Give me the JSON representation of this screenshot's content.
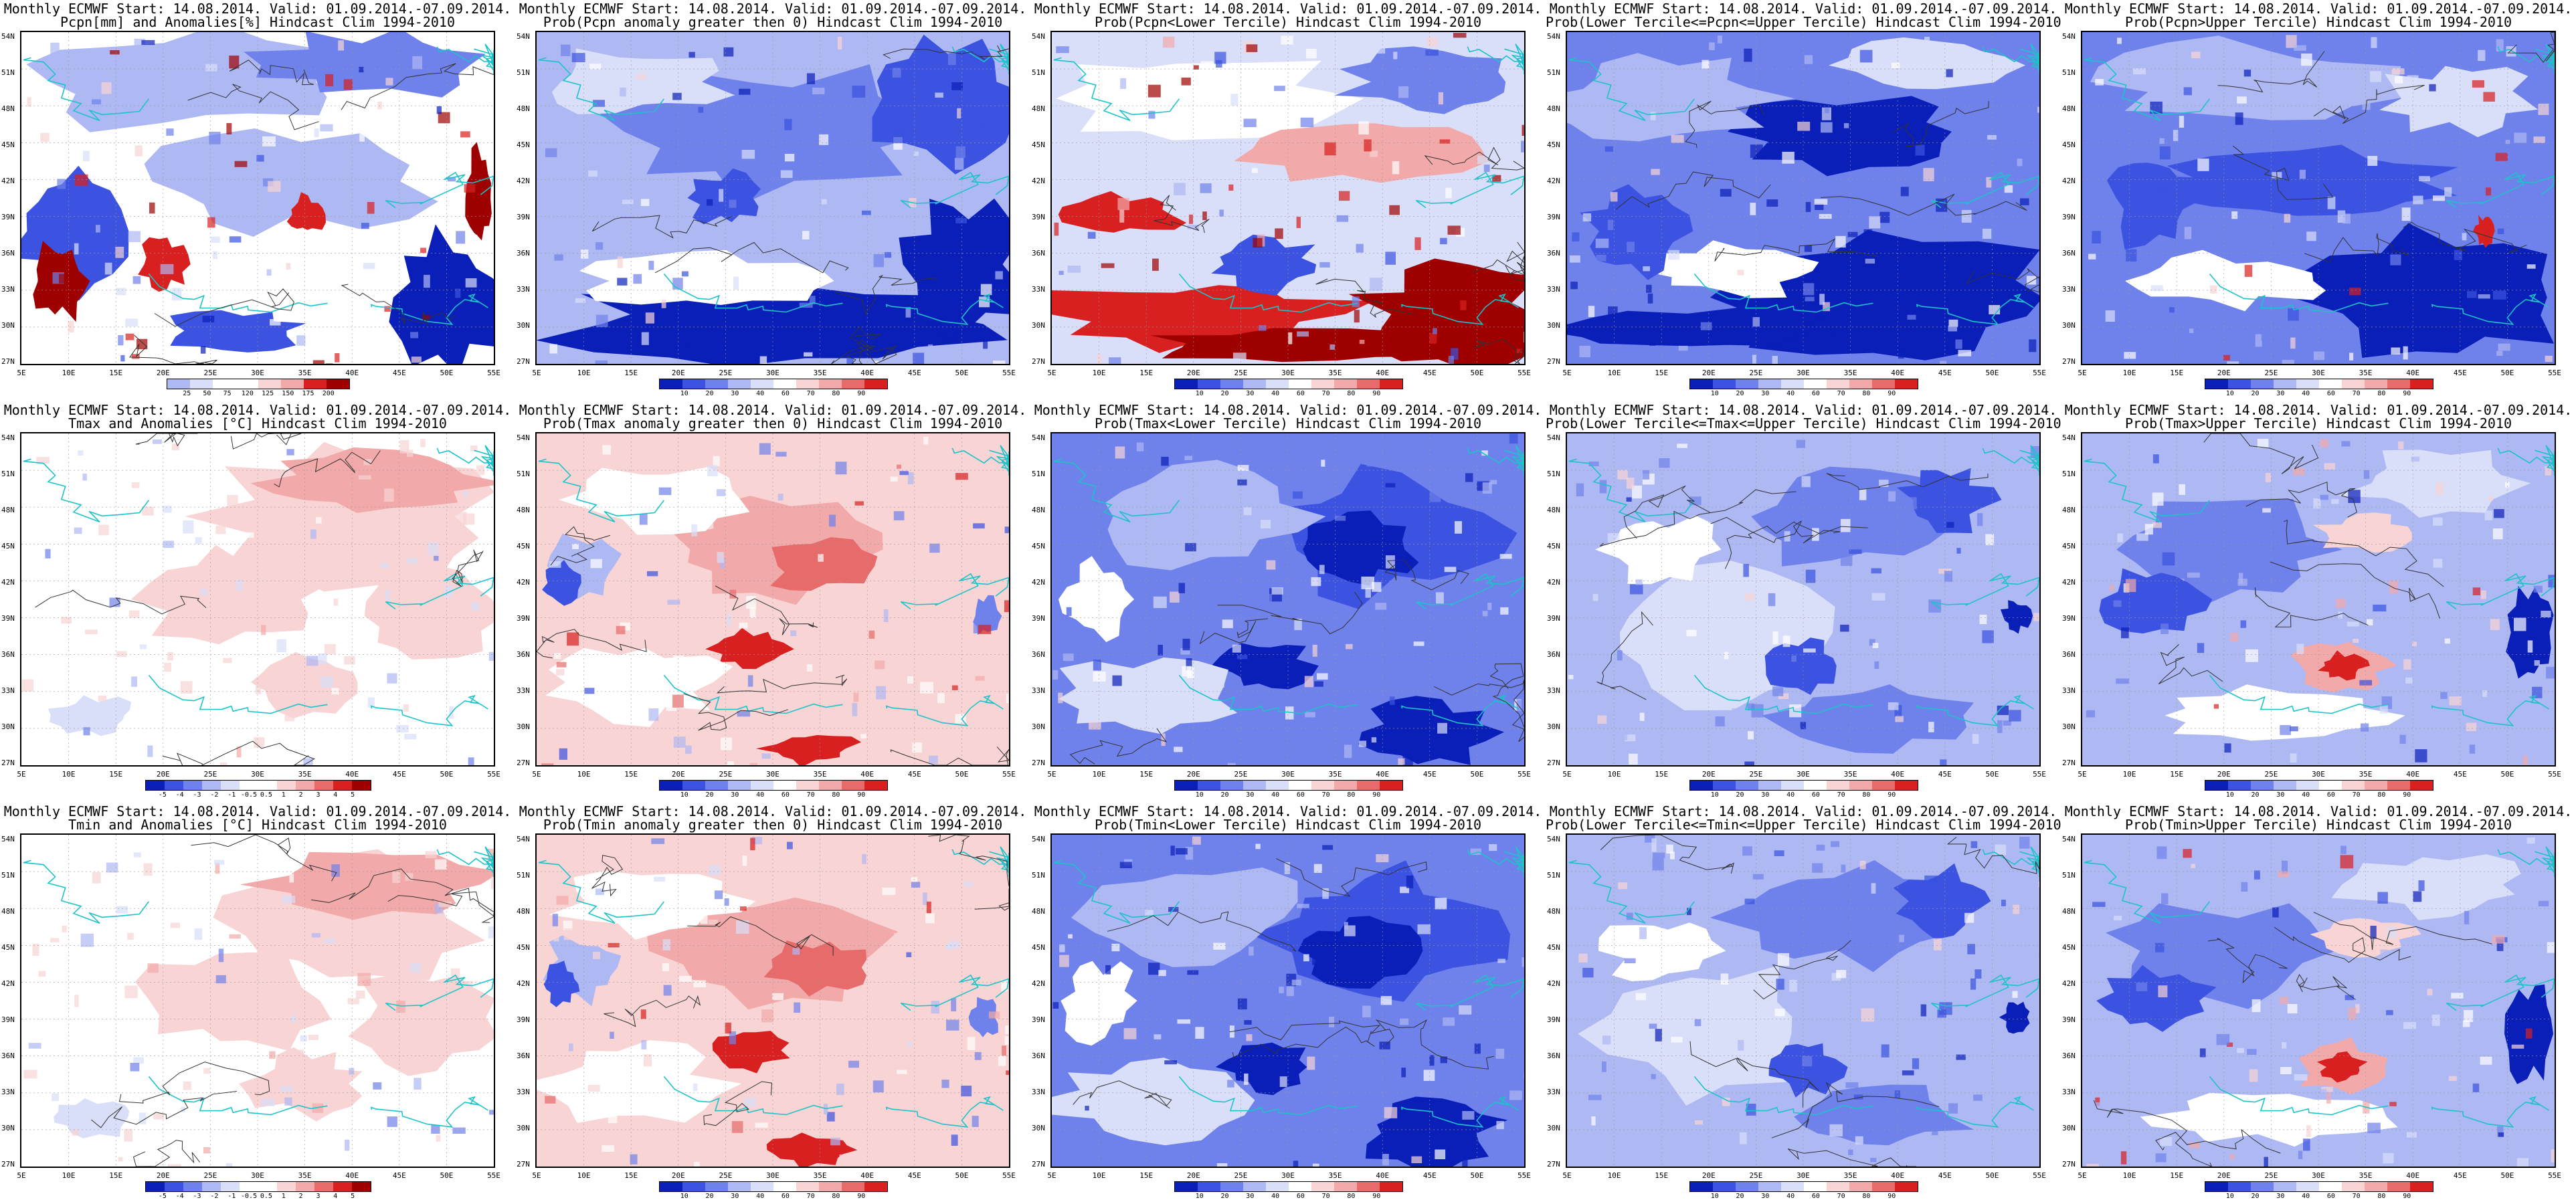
{
  "title_line1": "Monthly ECMWF Start: 14.08.2014. Valid: 01.09.2014.-07.09.2014.",
  "lat_labels": [
    "54N",
    "51N",
    "48N",
    "45N",
    "42N",
    "39N",
    "36N",
    "33N",
    "30N",
    "27N"
  ],
  "lon_labels": [
    "5E",
    "10E",
    "15E",
    "20E",
    "25E",
    "30E",
    "35E",
    "40E",
    "45E",
    "50E",
    "55E"
  ],
  "colors": {
    "deep_blue": "#0a1fb8",
    "blue": "#3b53e0",
    "mid_blue": "#6f81ea",
    "light_blue": "#aeb8f3",
    "pale_blue": "#d9def9",
    "white": "#ffffff",
    "pale_red": "#f8d4d4",
    "light_red": "#f2a9a9",
    "mid_red": "#e76b6b",
    "red": "#d92020",
    "dark_red": "#9e0000",
    "coast": "#1cc3c9",
    "contour": "#333333"
  },
  "colorbars": {
    "pcpn_anom": [
      "25",
      "50",
      "75",
      "120",
      "125",
      "150",
      "175",
      "200"
    ],
    "prob": [
      "10",
      "20",
      "30",
      "40",
      "60",
      "70",
      "80",
      "90"
    ],
    "temp_anom": [
      "-5",
      "-4",
      "-3",
      "-2",
      "-1",
      "-0.5",
      "0.5",
      "1",
      "2",
      "3",
      "4",
      "5"
    ]
  },
  "panels": [
    {
      "title2": "Pcpn[mm] and Anomalies[%] Hindcast Clim 1994-2010",
      "scheme": "pcpn",
      "cbar": "pcpn_anom"
    },
    {
      "title2": "Prob(Pcpn anomaly greater then 0) Hindcast Clim 1994-2010",
      "scheme": "pprob",
      "cbar": "prob"
    },
    {
      "title2": "Prob(Pcpn<Lower Tercile) Hindcast Clim 1994-2010",
      "scheme": "plow",
      "cbar": "prob"
    },
    {
      "title2": "Prob(Lower Tercile<=Pcpn<=Upper Tercile) Hindcast Clim 1994-2010",
      "scheme": "pmid",
      "cbar": "prob"
    },
    {
      "title2": "Prob(Pcpn>Upper Tercile) Hindcast Clim 1994-2010",
      "scheme": "pup",
      "cbar": "prob"
    },
    {
      "title2": "Tmax and Anomalies [°C] Hindcast Clim 1994-2010",
      "scheme": "tanom",
      "cbar": "temp_anom"
    },
    {
      "title2": "Prob(Tmax anomaly greater then 0) Hindcast Clim 1994-2010",
      "scheme": "tprob",
      "cbar": "prob"
    },
    {
      "title2": "Prob(Tmax<Lower Tercile) Hindcast Clim 1994-2010",
      "scheme": "tlow",
      "cbar": "prob"
    },
    {
      "title2": "Prob(Lower Tercile<=Tmax<=Upper Tercile) Hindcast Clim 1994-2010",
      "scheme": "tmid",
      "cbar": "prob"
    },
    {
      "title2": "Prob(Tmax>Upper Tercile) Hindcast Clim 1994-2010",
      "scheme": "tup",
      "cbar": "prob"
    },
    {
      "title2": "Tmin and Anomalies [°C] Hindcast Clim 1994-2010",
      "scheme": "tanom",
      "cbar": "temp_anom"
    },
    {
      "title2": "Prob(Tmin anomaly greater then 0) Hindcast Clim 1994-2010",
      "scheme": "tprob",
      "cbar": "prob"
    },
    {
      "title2": "Prob(Tmin<Lower Tercile) Hindcast Clim 1994-2010",
      "scheme": "tlow",
      "cbar": "prob"
    },
    {
      "title2": "Prob(Lower Tercile<=Tmin<=Upper Tercile) Hindcast Clim 1994-2010",
      "scheme": "tmid",
      "cbar": "prob"
    },
    {
      "title2": "Prob(Tmin>Upper Tercile) Hindcast Clim 1994-2010",
      "scheme": "tup",
      "cbar": "prob"
    }
  ]
}
